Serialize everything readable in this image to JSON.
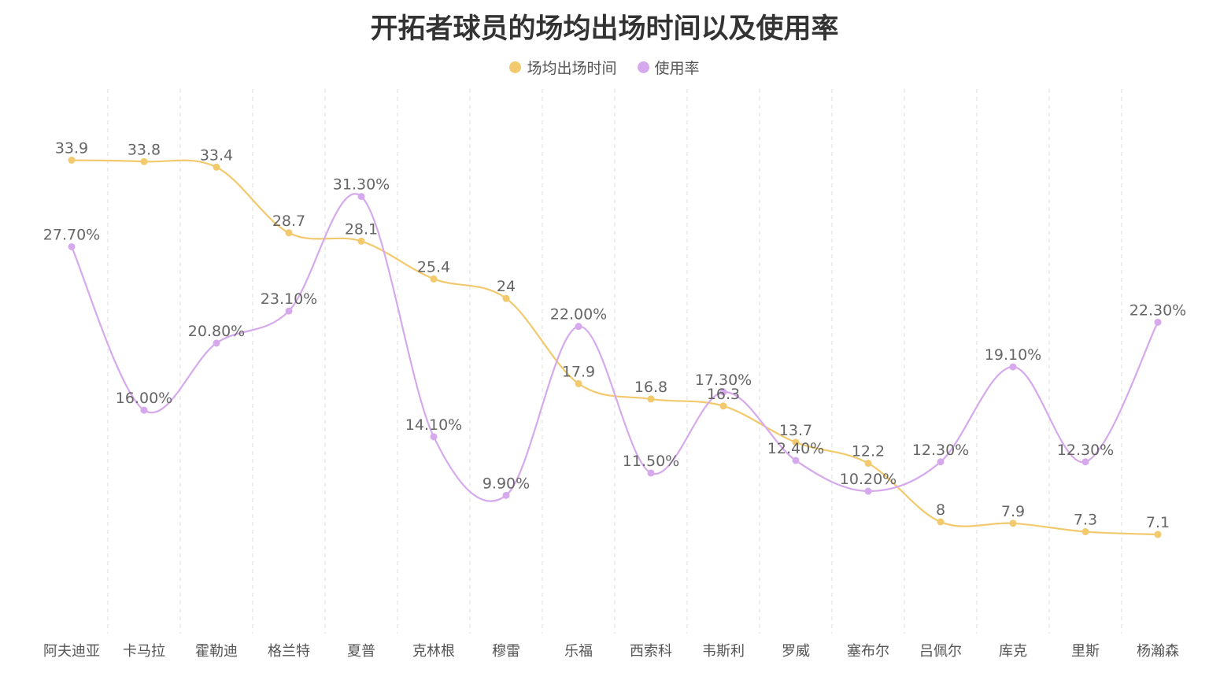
{
  "chart_data": {
    "type": "line",
    "title": "开拓者球员的场均出场时间以及使用率",
    "xlabel": "",
    "ylabel": "",
    "ylim": [
      0,
      39
    ],
    "grid": "vertical dashed",
    "legend_position": "top-center",
    "categories": [
      "阿夫迪亚",
      "卡马拉",
      "霍勒迪",
      "格兰特",
      "夏普",
      "克林根",
      "穆雷",
      "乐福",
      "西索科",
      "韦斯利",
      "罗威",
      "塞布尔",
      "吕佩尔",
      "库克",
      "里斯",
      "杨瀚森"
    ],
    "series": [
      {
        "name": "场均出场时间",
        "color": "#f2c96d",
        "values": [
          33.9,
          33.8,
          33.4,
          28.7,
          28.1,
          25.4,
          24,
          17.9,
          16.8,
          16.3,
          13.7,
          12.2,
          8,
          7.9,
          7.3,
          7.1
        ],
        "labels": [
          "33.9",
          "33.8",
          "33.4",
          "28.7",
          "28.1",
          "25.4",
          "24",
          "17.9",
          "16.8",
          "16.3",
          "13.7",
          "12.2",
          "8",
          "7.9",
          "7.3",
          "7.1"
        ]
      },
      {
        "name": "使用率",
        "color": "#d6a9ec",
        "values": [
          27.7,
          16.0,
          20.8,
          23.1,
          31.3,
          14.1,
          9.9,
          22.0,
          11.5,
          17.3,
          12.4,
          10.2,
          12.3,
          19.1,
          12.3,
          22.3
        ],
        "labels": [
          "27.70%",
          "16.00%",
          "20.80%",
          "23.10%",
          "31.30%",
          "14.10%",
          "9.90%",
          "22.00%",
          "11.50%",
          "17.30%",
          "12.40%",
          "10.20%",
          "12.30%",
          "19.10%",
          "12.30%",
          "22.30%"
        ]
      }
    ]
  }
}
